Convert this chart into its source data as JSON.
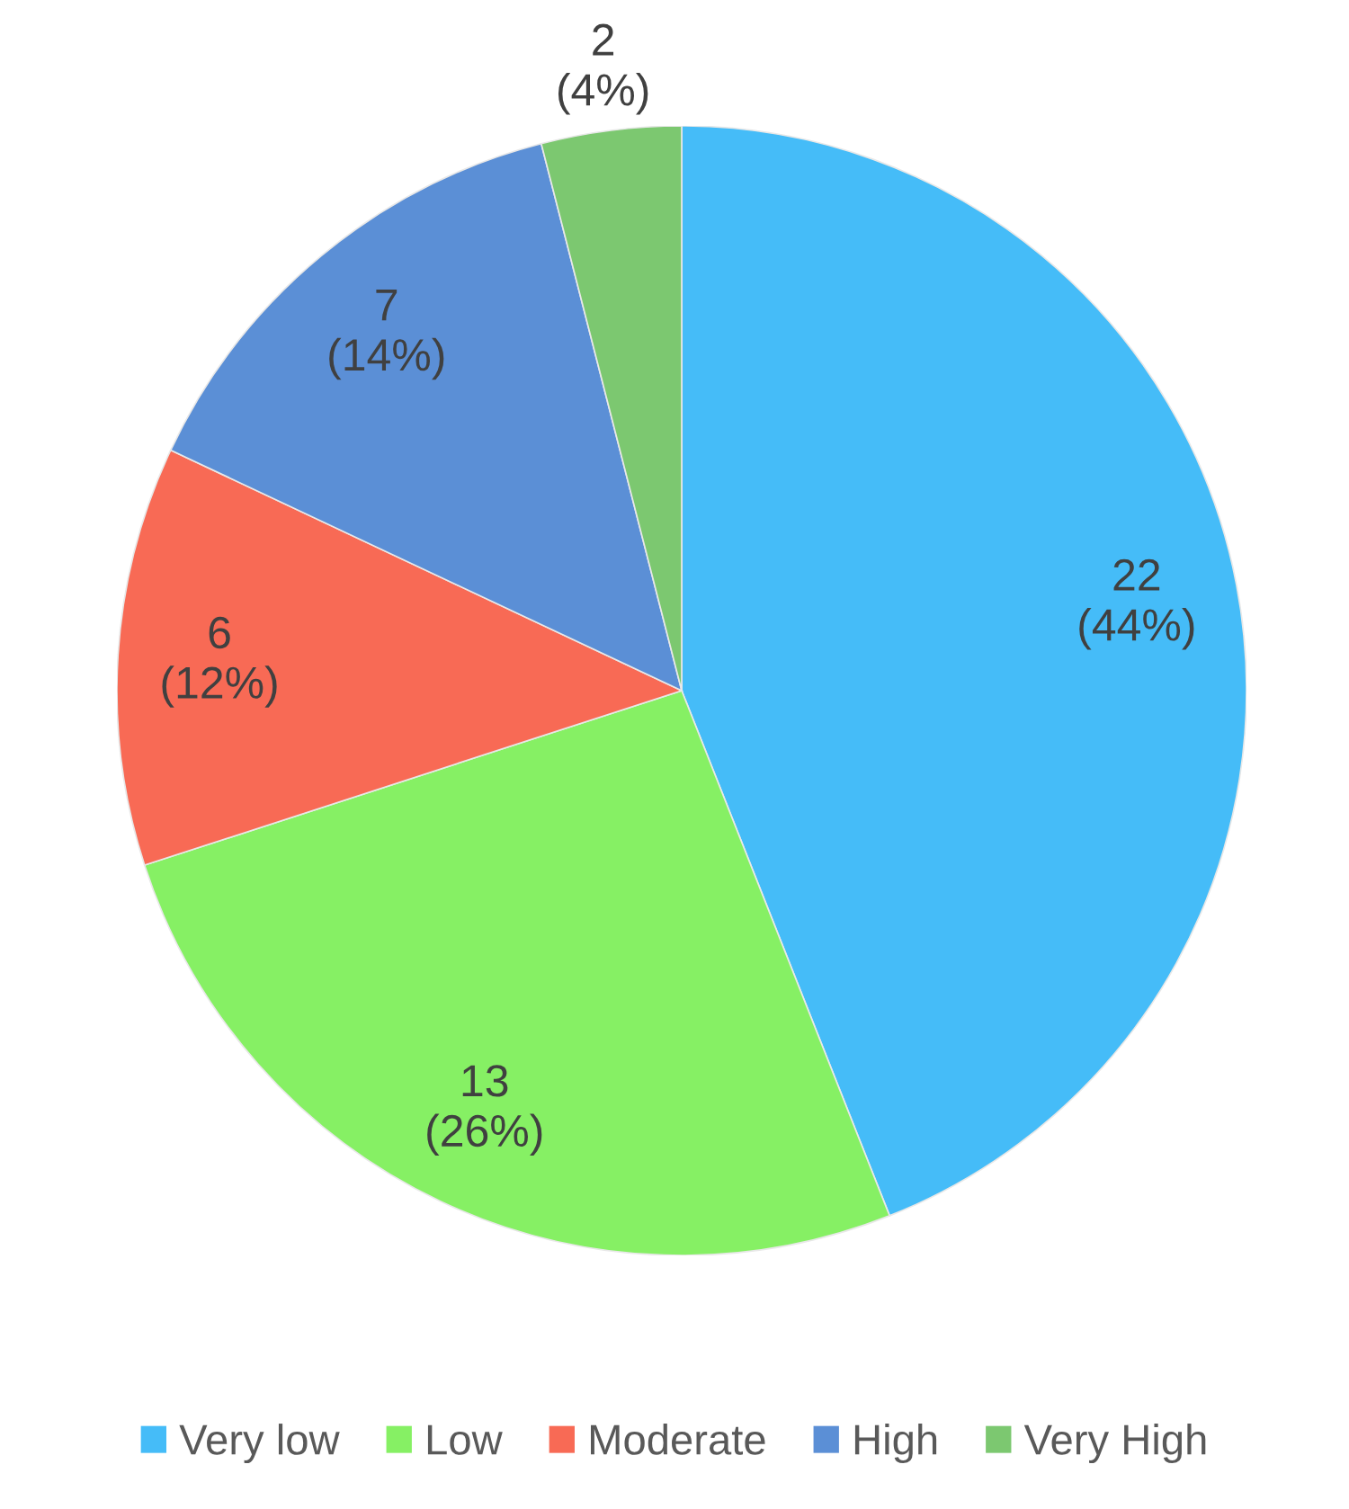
{
  "chart_data": {
    "type": "pie",
    "categories": [
      "Very low",
      "Low",
      "Moderate",
      "High",
      "Very High"
    ],
    "values": [
      22,
      13,
      6,
      7,
      2
    ],
    "colors": [
      "#45bcf8",
      "#86f064",
      "#f86a55",
      "#5b8fd6",
      "#7cc870"
    ],
    "value_labels": [
      "22\n(44%)",
      "13\n(26%)",
      "6\n(12%)",
      "7\n(14%)",
      "2\n(4%)"
    ],
    "legend": "bottom"
  }
}
